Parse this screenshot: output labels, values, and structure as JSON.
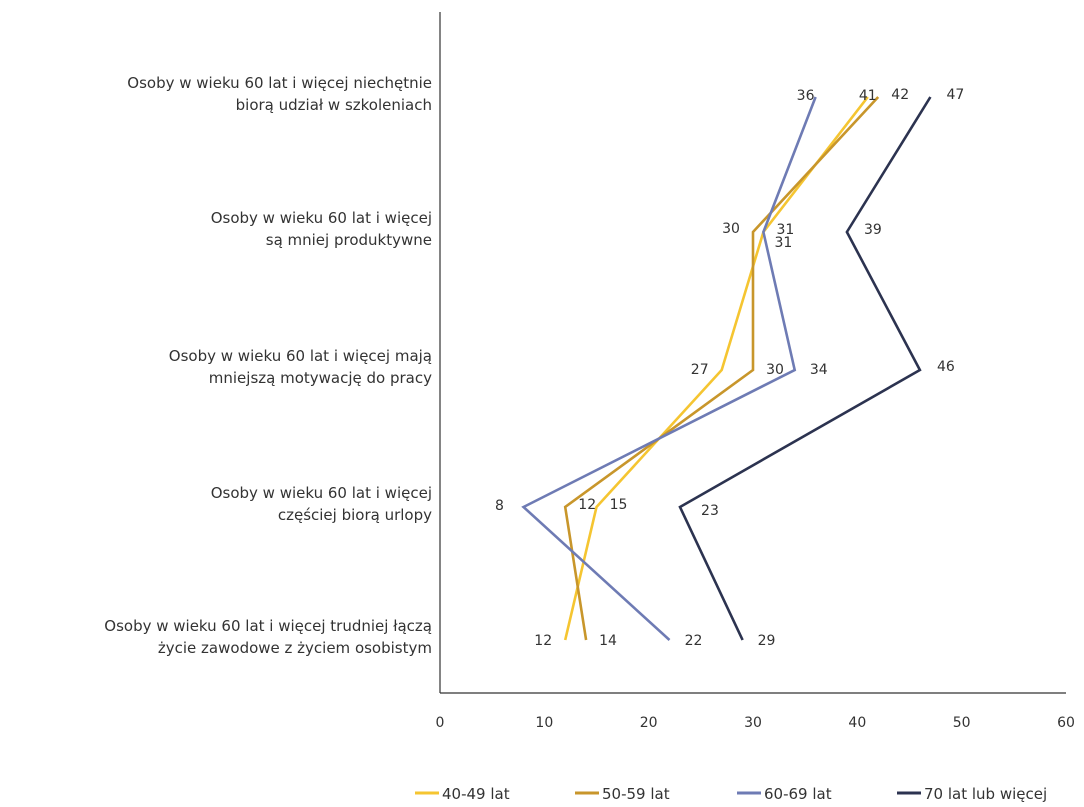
{
  "chart_data": {
    "type": "line",
    "orientation": "horizontal",
    "categories": [
      [
        "Osoby w wieku 60 lat i więcej niechętnie",
        "biorą udział w szkoleniach"
      ],
      [
        "Osoby w wieku 60 lat i więcej",
        "są mniej produktywne"
      ],
      [
        "Osoby w wieku 60 lat i więcej mają",
        "mniejszą motywację do pracy"
      ],
      [
        "Osoby w wieku 60 lat i więcej",
        "częściej biorą urlopy"
      ],
      [
        "Osoby w wieku 60 lat i więcej trudniej łączą",
        "życie zawodowe z życiem osobistym"
      ]
    ],
    "series": [
      {
        "name": "40-49 lat",
        "color": "#F5C531",
        "values": [
          41,
          31,
          27,
          15,
          12
        ]
      },
      {
        "name": "50-59 lat",
        "color": "#C8962B",
        "values": [
          42,
          30,
          30,
          12,
          14
        ]
      },
      {
        "name": "60-69 lat",
        "color": "#6E7BB4",
        "values": [
          36,
          31,
          34,
          8,
          22
        ]
      },
      {
        "name": "70 lat lub więcej",
        "color": "#2C3350",
        "values": [
          47,
          39,
          46,
          23,
          29
        ]
      }
    ],
    "x_ticks": [
      "0",
      "10",
      "20",
      "30",
      "40",
      "50",
      "60"
    ],
    "xlim": [
      0,
      60
    ],
    "legend_position": "bottom",
    "grid": false
  }
}
